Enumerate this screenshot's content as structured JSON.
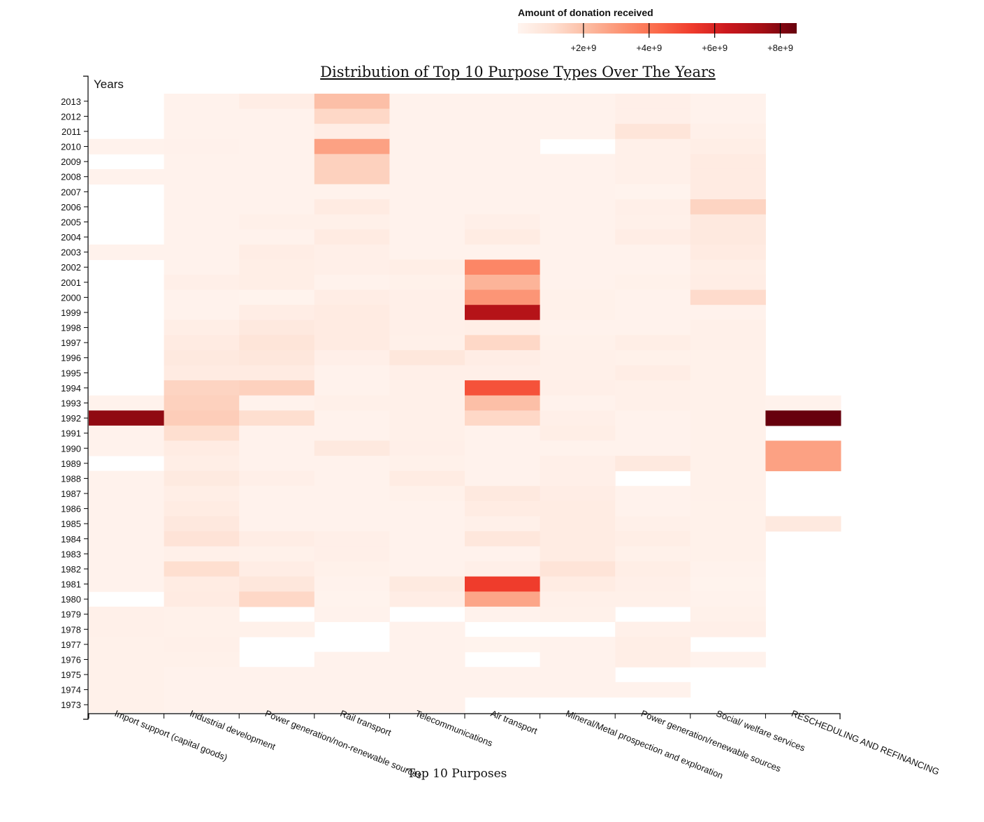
{
  "chart_data": {
    "type": "heatmap",
    "title": "Distribution of Top 10 Purpose Types Over The Years",
    "xlabel": "Top 10 Purposes",
    "ylabel": "Years",
    "legend_title": "Amount of donation received",
    "legend_ticks": [
      "+2e+9",
      "+4e+9",
      "+6e+9",
      "+8e+9"
    ],
    "legend_tick_values": [
      2000000000,
      4000000000,
      6000000000,
      8000000000
    ],
    "color_range": [
      0,
      8500000000
    ],
    "color_scale": [
      "#fff5f0",
      "#fee0d2",
      "#fcbba1",
      "#fc9272",
      "#fb6a4a",
      "#ef3b2c",
      "#cb181d",
      "#a50f15",
      "#67000d"
    ],
    "categories": [
      "Import support (capital goods)",
      "Industrial development",
      "Power generation/non-renewable sources",
      "Rail transport",
      "Telecommunications",
      "Air transport",
      "Mineral/Metal prospection and exploration",
      "Power generation/renewable sources",
      "Social/ welfare services",
      "RESCHEDULING AND REFINANCING"
    ],
    "years": [
      "2013",
      "2012",
      "2011",
      "2010",
      "2009",
      "2008",
      "2007",
      "2006",
      "2005",
      "2004",
      "2003",
      "2002",
      "2001",
      "2000",
      "1999",
      "1998",
      "1997",
      "1996",
      "1995",
      "1994",
      "1993",
      "1992",
      "1991",
      "1990",
      "1989",
      "1988",
      "1987",
      "1986",
      "1985",
      "1984",
      "1983",
      "1982",
      "1981",
      "1980",
      "1979",
      "1978",
      "1977",
      "1976",
      "1975",
      "1974",
      "1973"
    ],
    "values": [
      [
        null,
        150000000,
        400000000,
        2000000000,
        150000000,
        150000000,
        150000000,
        300000000,
        150000000,
        null
      ],
      [
        null,
        150000000,
        150000000,
        1300000000,
        150000000,
        150000000,
        150000000,
        300000000,
        150000000,
        null
      ],
      [
        null,
        150000000,
        150000000,
        400000000,
        150000000,
        150000000,
        150000000,
        800000000,
        250000000,
        null
      ],
      [
        150000000,
        180000000,
        150000000,
        2800000000,
        150000000,
        150000000,
        null,
        250000000,
        350000000,
        null
      ],
      [
        null,
        150000000,
        150000000,
        1500000000,
        150000000,
        150000000,
        150000000,
        250000000,
        500000000,
        null
      ],
      [
        150000000,
        150000000,
        150000000,
        1500000000,
        150000000,
        150000000,
        150000000,
        250000000,
        500000000,
        null
      ],
      [
        null,
        150000000,
        150000000,
        150000000,
        150000000,
        150000000,
        150000000,
        100000000,
        500000000,
        null
      ],
      [
        null,
        150000000,
        150000000,
        500000000,
        150000000,
        150000000,
        150000000,
        300000000,
        1400000000,
        null
      ],
      [
        null,
        150000000,
        250000000,
        250000000,
        150000000,
        300000000,
        150000000,
        250000000,
        600000000,
        null
      ],
      [
        null,
        150000000,
        150000000,
        500000000,
        150000000,
        450000000,
        150000000,
        400000000,
        600000000,
        null
      ],
      [
        150000000,
        150000000,
        400000000,
        300000000,
        150000000,
        150000000,
        150000000,
        150000000,
        500000000,
        null
      ],
      [
        null,
        150000000,
        350000000,
        300000000,
        350000000,
        3500000000,
        150000000,
        150000000,
        350000000,
        null
      ],
      [
        null,
        300000000,
        350000000,
        150000000,
        200000000,
        2300000000,
        150000000,
        200000000,
        400000000,
        null
      ],
      [
        null,
        150000000,
        100000000,
        400000000,
        300000000,
        3100000000,
        200000000,
        150000000,
        1200000000,
        null
      ],
      [
        null,
        150000000,
        400000000,
        500000000,
        300000000,
        7000000000,
        200000000,
        150000000,
        150000000,
        null
      ],
      [
        null,
        350000000,
        600000000,
        500000000,
        300000000,
        350000000,
        150000000,
        150000000,
        250000000,
        null
      ],
      [
        null,
        500000000,
        800000000,
        500000000,
        250000000,
        1300000000,
        200000000,
        350000000,
        250000000,
        null
      ],
      [
        null,
        600000000,
        700000000,
        300000000,
        700000000,
        400000000,
        250000000,
        200000000,
        200000000,
        null
      ],
      [
        null,
        500000000,
        500000000,
        150000000,
        300000000,
        300000000,
        250000000,
        400000000,
        200000000,
        null
      ],
      [
        null,
        1400000000,
        1500000000,
        150000000,
        250000000,
        4800000000,
        300000000,
        250000000,
        200000000,
        null
      ],
      [
        150000000,
        1500000000,
        150000000,
        250000000,
        250000000,
        2000000000,
        150000000,
        250000000,
        200000000,
        150000000
      ],
      [
        7800000000,
        1600000000,
        1100000000,
        150000000,
        250000000,
        1300000000,
        300000000,
        150000000,
        200000000,
        8500000000
      ],
      [
        150000000,
        1100000000,
        150000000,
        150000000,
        250000000,
        150000000,
        350000000,
        150000000,
        200000000,
        null
      ],
      [
        150000000,
        450000000,
        150000000,
        600000000,
        300000000,
        150000000,
        150000000,
        150000000,
        200000000,
        2800000000
      ],
      [
        null,
        350000000,
        150000000,
        150000000,
        200000000,
        150000000,
        300000000,
        600000000,
        200000000,
        2800000000
      ],
      [
        150000000,
        550000000,
        300000000,
        150000000,
        450000000,
        150000000,
        300000000,
        null,
        200000000,
        null
      ],
      [
        150000000,
        350000000,
        150000000,
        150000000,
        200000000,
        600000000,
        400000000,
        150000000,
        200000000,
        null
      ],
      [
        150000000,
        450000000,
        150000000,
        150000000,
        150000000,
        450000000,
        450000000,
        150000000,
        200000000,
        null
      ],
      [
        150000000,
        650000000,
        150000000,
        150000000,
        150000000,
        250000000,
        450000000,
        250000000,
        200000000,
        600000000
      ],
      [
        150000000,
        900000000,
        400000000,
        300000000,
        150000000,
        700000000,
        450000000,
        350000000,
        200000000,
        null
      ],
      [
        150000000,
        250000000,
        200000000,
        300000000,
        150000000,
        150000000,
        450000000,
        200000000,
        200000000,
        null
      ],
      [
        150000000,
        1100000000,
        400000000,
        200000000,
        150000000,
        300000000,
        850000000,
        350000000,
        150000000,
        null
      ],
      [
        150000000,
        450000000,
        700000000,
        150000000,
        550000000,
        5300000000,
        450000000,
        300000000,
        100000000,
        null
      ],
      [
        null,
        500000000,
        1300000000,
        100000000,
        400000000,
        2700000000,
        250000000,
        250000000,
        150000000,
        null
      ],
      [
        250000000,
        200000000,
        null,
        150000000,
        null,
        150000000,
        200000000,
        null,
        200000000,
        null
      ],
      [
        250000000,
        200000000,
        200000000,
        null,
        150000000,
        null,
        null,
        250000000,
        300000000,
        null
      ],
      [
        200000000,
        250000000,
        null,
        null,
        150000000,
        100000000,
        150000000,
        350000000,
        null,
        null
      ],
      [
        200000000,
        200000000,
        null,
        150000000,
        150000000,
        null,
        150000000,
        350000000,
        150000000,
        null
      ],
      [
        200000000,
        150000000,
        150000000,
        150000000,
        150000000,
        150000000,
        150000000,
        null,
        null,
        null
      ],
      [
        200000000,
        150000000,
        150000000,
        150000000,
        150000000,
        150000000,
        150000000,
        150000000,
        null,
        null
      ],
      [
        200000000,
        150000000,
        150000000,
        150000000,
        150000000,
        null,
        null,
        null,
        null,
        null
      ]
    ]
  }
}
